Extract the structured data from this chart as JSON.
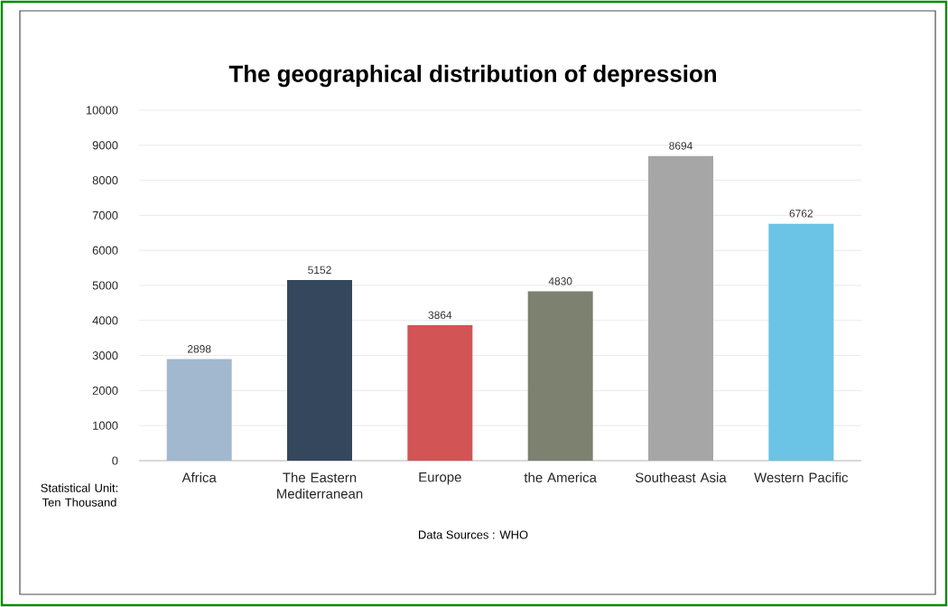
{
  "chart_data": {
    "type": "bar",
    "title": "The geographical distribution of depression",
    "categories": [
      "Africa",
      "The Eastern Mediterranean",
      "Europe",
      "the America",
      "Southeast Asia",
      "Western Pacific"
    ],
    "values": [
      2898,
      5152,
      3864,
      4830,
      8694,
      6762
    ],
    "colors": [
      "#a2b8cf",
      "#35475c",
      "#d25455",
      "#7c8170",
      "#a6a6a6",
      "#6bc3e6"
    ],
    "ylim": [
      0,
      10000
    ],
    "yticks": [
      0,
      1000,
      2000,
      3000,
      4000,
      5000,
      6000,
      7000,
      8000,
      9000,
      10000
    ],
    "grid": "y",
    "data_labels": true,
    "annotations": [
      "Statistical Unit: Ten Thousand",
      "Data Sources : WHO"
    ]
  }
}
